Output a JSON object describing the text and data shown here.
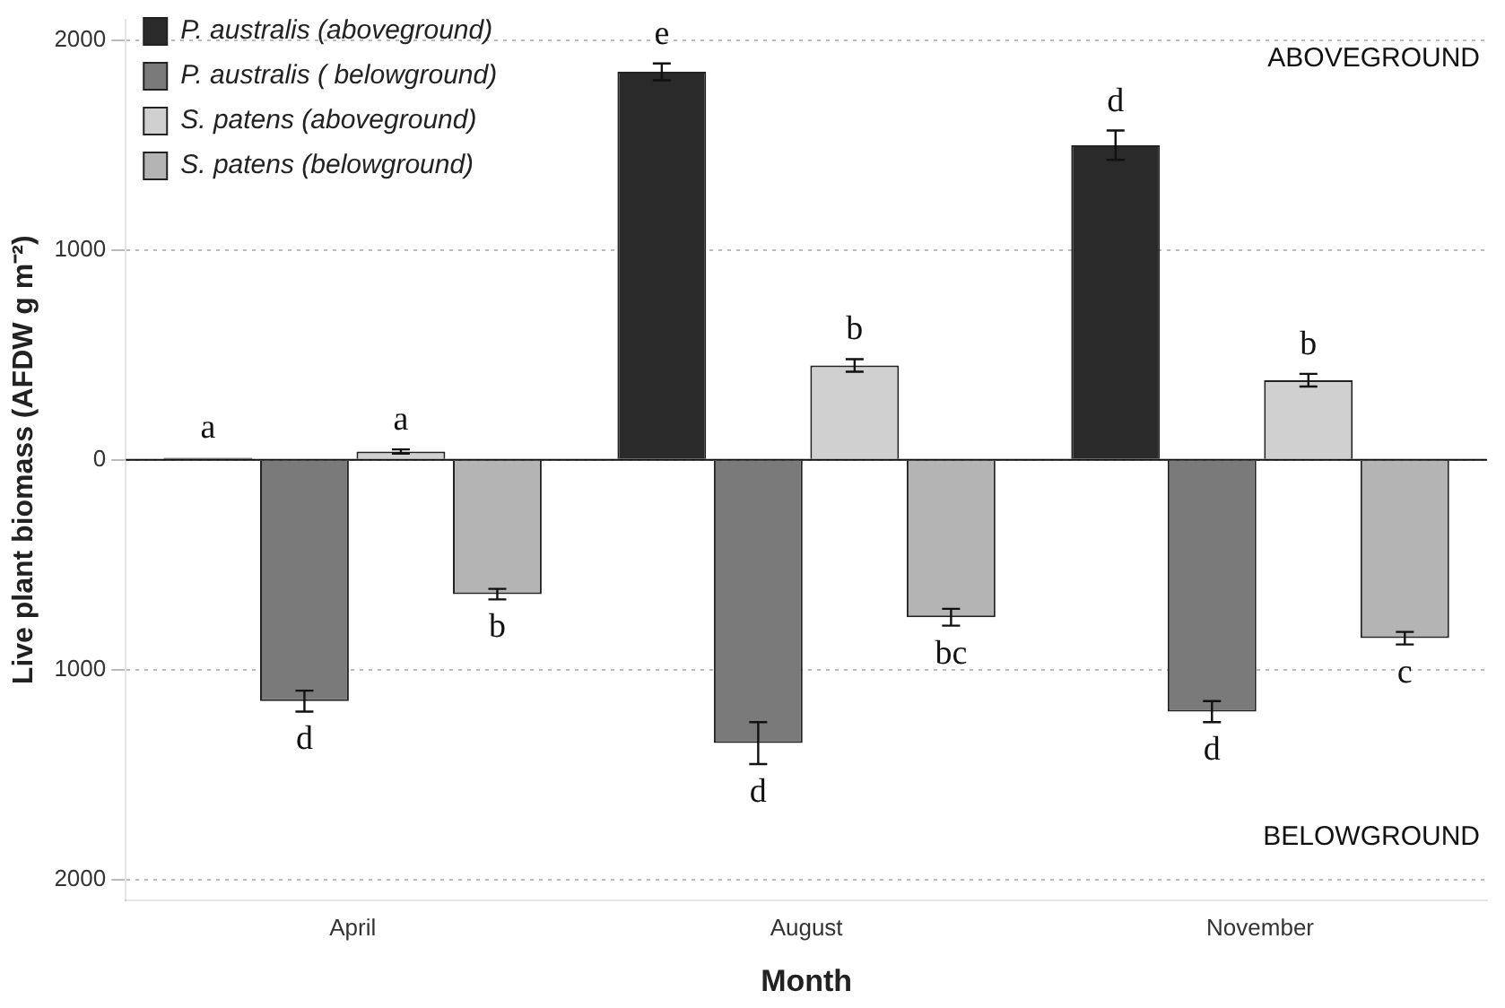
{
  "chart_data": {
    "type": "bar",
    "xlabel": "Month",
    "ylabel": "Live plant biomass (AFDW g m⁻²)",
    "categories": [
      "April",
      "August",
      "November"
    ],
    "series": [
      {
        "name": "P. australis (aboveground)",
        "color": "#2a2a2a",
        "values": [
          10,
          1850,
          1500
        ],
        "value_labels": [
          "a",
          "e",
          "d"
        ],
        "errors": [
          null,
          40,
          70
        ]
      },
      {
        "name": "P. australis ( belowground)",
        "color": "#7a7a7a",
        "values": [
          -1150,
          -1350,
          -1200
        ],
        "value_labels": [
          "d",
          "d",
          "d"
        ],
        "errors": [
          50,
          100,
          50
        ]
      },
      {
        "name": "S. patens (aboveground)",
        "color": "#d0d0d0",
        "values": [
          40,
          450,
          380
        ],
        "value_labels": [
          "a",
          "b",
          "b"
        ],
        "errors": [
          10,
          30,
          30
        ]
      },
      {
        "name": "S. patens (belowground)",
        "color": "#b4b4b4",
        "values": [
          -640,
          -750,
          -850
        ],
        "value_labels": [
          "b",
          "bc",
          "c"
        ],
        "errors": [
          25,
          40,
          30
        ]
      }
    ],
    "ylim": [
      -2100,
      2100
    ],
    "yticks": [
      {
        "value": -2000,
        "label": "2000"
      },
      {
        "value": -1000,
        "label": "1000"
      },
      0,
      1000,
      2000
    ],
    "grid": "y",
    "legend": "top left",
    "annotations": [
      "ABOVEGROUND",
      "BELOWGROUND"
    ]
  }
}
